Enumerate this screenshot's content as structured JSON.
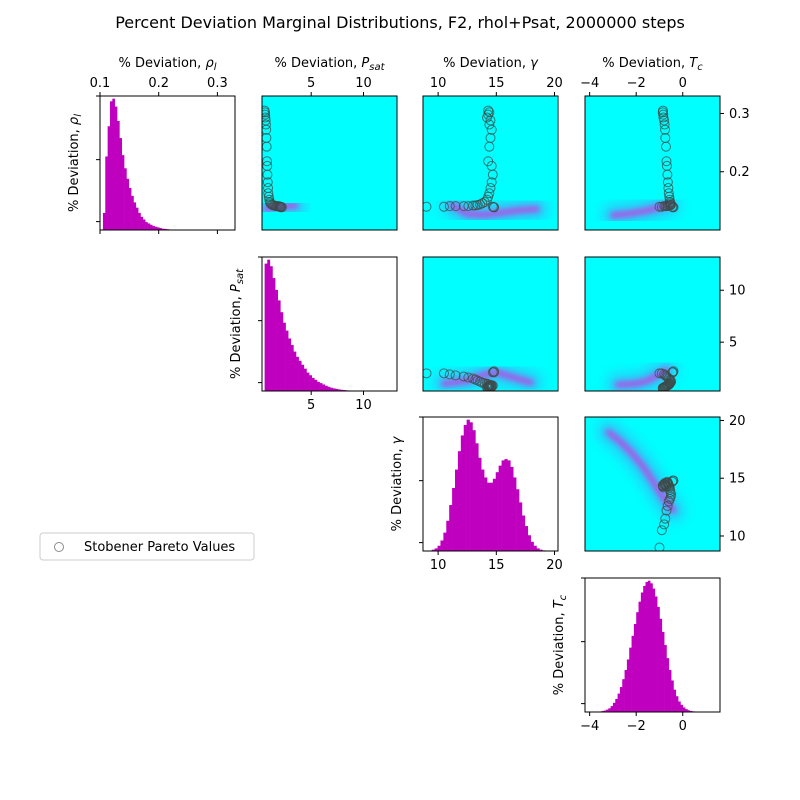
{
  "title": "Percent Deviation Marginal Distributions, F2, rhol+Psat, 2000000 steps",
  "legend": {
    "label": "Stobener Pareto Values",
    "position": "center-left"
  },
  "colors": {
    "histogram": "#bf00bf",
    "density_low": "#00ffff",
    "density_mid": "#4f9cf0",
    "density_high": "#e028e0",
    "pareto_marker": "#404a4a"
  },
  "chart_data": {
    "type": "corner-plot",
    "variables": [
      {
        "key": "rho",
        "label_base": "% Deviation, ",
        "label_symbol": "ρ",
        "label_sub": "l",
        "range": [
          0.1,
          0.33
        ],
        "ticks": [
          0.1,
          0.2,
          0.3
        ],
        "tick_labels": [
          "0.1",
          "0.2",
          "0.3"
        ]
      },
      {
        "key": "psat",
        "label_base": "% Deviation, ",
        "label_symbol": "P",
        "label_sub": "sat",
        "range": [
          0.3,
          13.2
        ],
        "ticks": [
          5,
          10
        ],
        "tick_labels": [
          "5",
          "10"
        ]
      },
      {
        "key": "gamma",
        "label_base": "% Deviation, ",
        "label_symbol": "γ",
        "label_sub": "",
        "range": [
          8.7,
          20.3
        ],
        "ticks": [
          10,
          15,
          20
        ],
        "tick_labels": [
          "10",
          "15",
          "20"
        ]
      },
      {
        "key": "tc",
        "label_base": "% Deviation, ",
        "label_symbol": "T",
        "label_sub": "c",
        "range": [
          -4.2,
          1.6
        ],
        "ticks": [
          -4,
          -2,
          0
        ],
        "tick_labels": [
          "−4",
          "−2",
          "0"
        ]
      }
    ],
    "right_axis_ticks": {
      "rho": {
        "ticks": [
          0.2,
          0.3
        ],
        "labels": [
          "0.2",
          "0.3"
        ]
      },
      "psat": {
        "ticks": [
          5,
          10
        ],
        "labels": [
          "5",
          "10"
        ]
      },
      "gamma": {
        "ticks": [
          10,
          15,
          20
        ],
        "labels": [
          "10",
          "15",
          "20"
        ]
      }
    },
    "histograms": {
      "rho": {
        "bin_start": 0.105,
        "bin_width": 0.004,
        "counts": [
          0.13,
          0.56,
          0.79,
          0.98,
          1.0,
          0.94,
          0.83,
          0.7,
          0.57,
          0.47,
          0.39,
          0.32,
          0.26,
          0.21,
          0.17,
          0.13,
          0.1,
          0.08,
          0.06,
          0.05,
          0.04,
          0.03,
          0.025,
          0.02,
          0.015,
          0.01,
          0.008,
          0.006,
          0.004,
          0.003,
          0.002,
          0.001
        ]
      },
      "psat": {
        "bin_start": 0.55,
        "bin_width": 0.25,
        "counts": [
          0.97,
          1.0,
          0.95,
          0.86,
          0.77,
          0.69,
          0.6,
          0.52,
          0.46,
          0.4,
          0.35,
          0.3,
          0.26,
          0.23,
          0.2,
          0.17,
          0.14,
          0.12,
          0.1,
          0.085,
          0.07,
          0.06,
          0.05,
          0.04,
          0.032,
          0.025,
          0.02,
          0.016,
          0.012,
          0.009,
          0.007,
          0.005,
          0.004,
          0.003,
          0.002,
          0.001
        ]
      },
      "gamma": {
        "bin_start": 9.2,
        "bin_width": 0.25,
        "counts": [
          0.003,
          0.01,
          0.02,
          0.04,
          0.08,
          0.14,
          0.23,
          0.35,
          0.48,
          0.62,
          0.76,
          0.88,
          0.96,
          1.0,
          0.98,
          0.92,
          0.82,
          0.71,
          0.62,
          0.56,
          0.52,
          0.52,
          0.55,
          0.6,
          0.65,
          0.69,
          0.7,
          0.69,
          0.64,
          0.56,
          0.47,
          0.37,
          0.27,
          0.19,
          0.12,
          0.07,
          0.04,
          0.02,
          0.01,
          0.005,
          0.003,
          0.001
        ]
      },
      "tc": {
        "bin_start": -3.6,
        "bin_width": 0.1,
        "counts": [
          0.004,
          0.007,
          0.011,
          0.018,
          0.028,
          0.045,
          0.07,
          0.1,
          0.14,
          0.19,
          0.25,
          0.32,
          0.4,
          0.49,
          0.58,
          0.67,
          0.76,
          0.84,
          0.91,
          0.96,
          0.99,
          1.0,
          0.98,
          0.94,
          0.88,
          0.8,
          0.71,
          0.61,
          0.51,
          0.41,
          0.32,
          0.24,
          0.17,
          0.12,
          0.08,
          0.055,
          0.035,
          0.022,
          0.013,
          0.008,
          0.005,
          0.003,
          0.001
        ]
      }
    },
    "pareto_values": {
      "rho": [
        0.305,
        0.302,
        0.298,
        0.293,
        0.288,
        0.281,
        0.272,
        0.258,
        0.243,
        0.218,
        0.21,
        0.195,
        0.182,
        0.172,
        0.163,
        0.157,
        0.152,
        0.148,
        0.146,
        0.144,
        0.143,
        0.142,
        0.142,
        0.141,
        0.141,
        0.141,
        0.141,
        0.14,
        0.14,
        0.14,
        0.139,
        0.139
      ],
      "psat": [
        0.55,
        0.58,
        0.6,
        0.62,
        0.65,
        0.68,
        0.7,
        0.72,
        0.75,
        0.78,
        0.8,
        0.82,
        0.85,
        0.88,
        0.9,
        0.95,
        1.0,
        1.05,
        1.1,
        1.2,
        1.3,
        1.4,
        1.5,
        1.6,
        1.7,
        1.8,
        1.9,
        2.0,
        2.0,
        2.1,
        2.1,
        2.2
      ],
      "gamma": [
        14.3,
        14.4,
        14.3,
        14.2,
        14.5,
        14.4,
        14.6,
        14.5,
        14.4,
        14.3,
        14.6,
        14.7,
        14.6,
        14.5,
        14.4,
        14.3,
        14.2,
        14.0,
        13.8,
        13.6,
        13.4,
        13.2,
        13.0,
        12.6,
        12.2,
        11.5,
        11.0,
        10.5,
        9.0,
        14.7,
        14.8,
        14.8
      ],
      "tc": [
        -0.85,
        -0.86,
        -0.84,
        -0.83,
        -0.8,
        -0.78,
        -0.76,
        -0.75,
        -0.72,
        -0.7,
        -0.68,
        -0.66,
        -0.64,
        -0.62,
        -0.6,
        -0.58,
        -0.56,
        -0.55,
        -0.53,
        -0.5,
        -0.52,
        -0.55,
        -0.6,
        -0.65,
        -0.7,
        -0.75,
        -0.8,
        -0.9,
        -1.0,
        -0.45,
        -0.42,
        -0.4
      ]
    },
    "density_ridges": {
      "psat-rho": [
        [
          0.7,
          0.135
        ],
        [
          1.2,
          0.14
        ],
        [
          2.0,
          0.141
        ],
        [
          3.5,
          0.142
        ]
      ],
      "gamma-rho": [
        [
          11.2,
          0.142
        ],
        [
          12.5,
          0.128
        ],
        [
          14.0,
          0.126
        ],
        [
          15.5,
          0.13
        ],
        [
          17.0,
          0.134
        ],
        [
          18.5,
          0.136
        ]
      ],
      "tc-rho": [
        [
          -3.0,
          0.125
        ],
        [
          -2.3,
          0.128
        ],
        [
          -1.6,
          0.133
        ],
        [
          -1.0,
          0.139
        ],
        [
          -0.6,
          0.143
        ]
      ],
      "gamma-psat": [
        [
          10.5,
          1.0
        ],
        [
          12.5,
          1.3
        ],
        [
          13.8,
          1.8
        ],
        [
          15.0,
          2.1
        ],
        [
          16.5,
          1.6
        ],
        [
          18.0,
          1.1
        ]
      ],
      "tc-psat": [
        [
          -2.8,
          0.9
        ],
        [
          -2.0,
          1.0
        ],
        [
          -1.5,
          1.3
        ],
        [
          -1.1,
          1.8
        ],
        [
          -0.7,
          2.3
        ]
      ],
      "tc-gamma": [
        [
          -3.2,
          19.0
        ],
        [
          -2.7,
          18.2
        ],
        [
          -2.2,
          17.2
        ],
        [
          -1.7,
          16.0
        ],
        [
          -1.2,
          14.5
        ],
        [
          -0.8,
          13.2
        ],
        [
          -0.4,
          12.2
        ]
      ]
    }
  }
}
